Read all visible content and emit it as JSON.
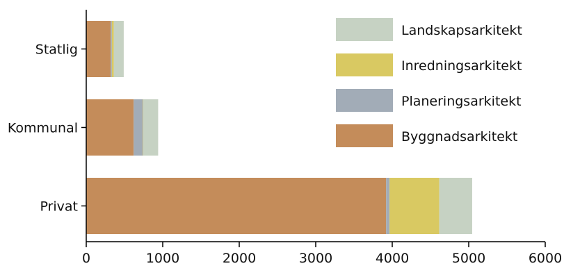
{
  "chart_data": {
    "type": "bar",
    "orientation": "horizontal",
    "stacked": true,
    "title": "",
    "xlabel": "",
    "ylabel": "",
    "categories": [
      "Statlig",
      "Kommunal",
      "Privat"
    ],
    "series": [
      {
        "name": "Byggnadsarkitekt",
        "color": "#c48c5a",
        "values": [
          320,
          620,
          3920
        ]
      },
      {
        "name": "Planeringsarkitekt",
        "color": "#a2acb7",
        "values": [
          15,
          120,
          45
        ]
      },
      {
        "name": "Inredningsarkitekt",
        "color": "#d9c962",
        "values": [
          25,
          5,
          650
        ]
      },
      {
        "name": "Landskapsarkitekt",
        "color": "#c6d2c3",
        "values": [
          130,
          195,
          430
        ]
      }
    ],
    "xlim": [
      0,
      6000
    ],
    "xticks": [
      "0",
      "1000",
      "2000",
      "3000",
      "4000",
      "5000",
      "6000"
    ],
    "legend": {
      "placement": "top-right",
      "entries": [
        "Landskapsarkitekt",
        "Inredningsarkitekt",
        "Planeringsarkitekt",
        "Byggnadsarkitekt"
      ]
    },
    "grid": false
  }
}
